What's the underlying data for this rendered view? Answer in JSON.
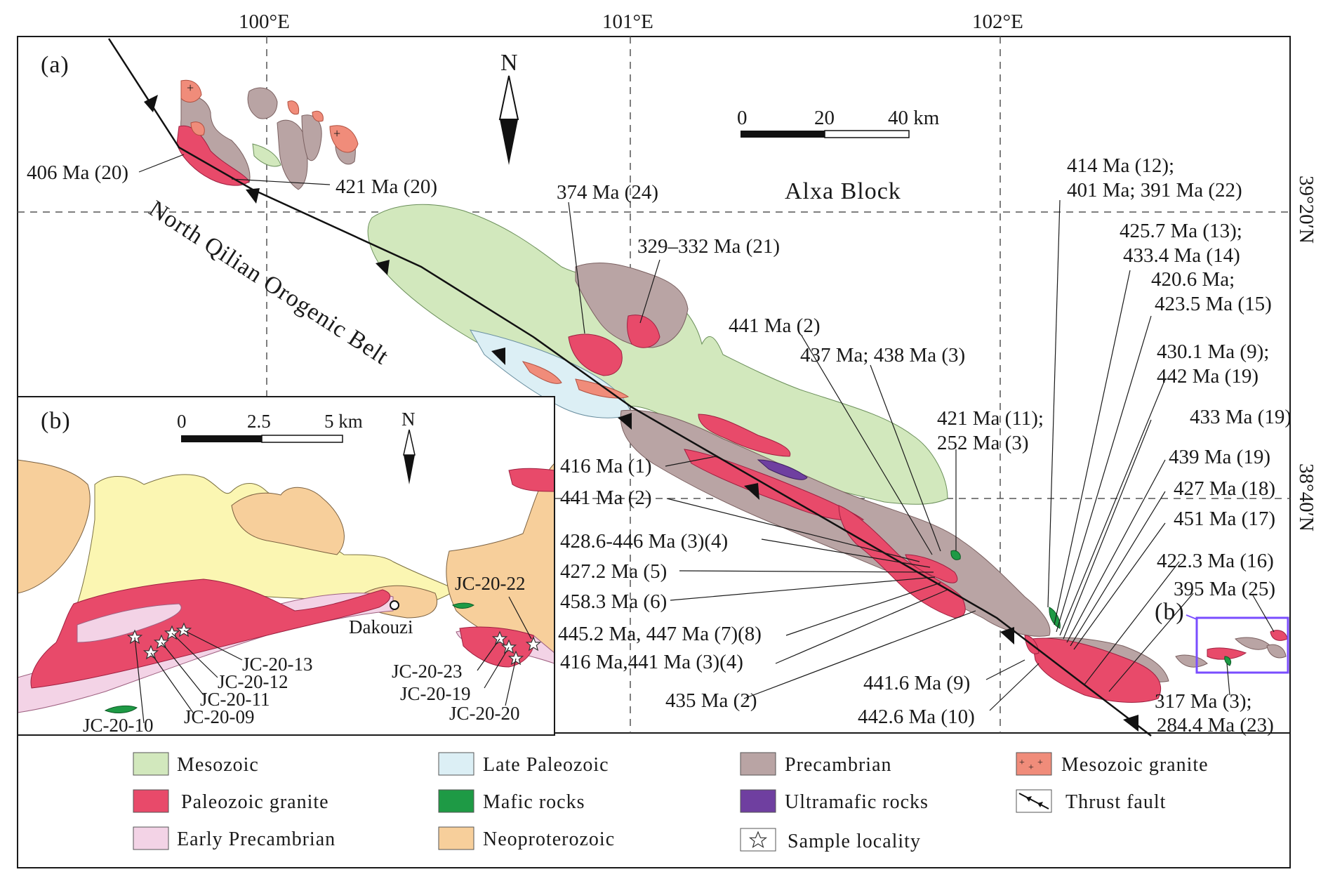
{
  "panel_a": {
    "label": "(a)",
    "longitudes": [
      "100°E",
      "101°E",
      "102°E"
    ],
    "latitudes": [
      "39°20′N",
      "38°40′N"
    ],
    "north": "N",
    "scale_ticks": [
      "0",
      "20",
      "40 km"
    ],
    "block_name": "Alxa Block",
    "belt_name": "North Qilian Orogenic Belt",
    "inset_marker": "(b)",
    "ages": [
      "406 Ma (20)",
      "421 Ma (20)",
      "374 Ma (24)",
      "329–332 Ma (21)",
      "441 Ma (2)",
      "437 Ma; 438 Ma (3)",
      "421 Ma (11);",
      "252 Ma (3)",
      "414 Ma (12);",
      "401 Ma; 391 Ma (22)",
      "425.7 Ma (13);",
      "433.4 Ma (14)",
      "420.6 Ma;",
      "423.5 Ma (15)",
      "430.1 Ma (9);",
      "442 Ma (19)",
      "433 Ma (19)",
      "439 Ma (19)",
      "427 Ma (18)",
      "451 Ma (17)",
      "422.3 Ma (16)",
      "395 Ma (25)",
      "317 Ma (3);",
      "284.4 Ma (23)",
      "416 Ma (1)",
      "441 Ma (2)",
      "428.6-446 Ma (3)(4)",
      "427.2 Ma (5)",
      "458.3 Ma (6)",
      "445.2 Ma, 447 Ma (7)(8)",
      "416 Ma,441 Ma (3)(4)",
      "435 Ma (2)",
      "441.6 Ma (9)",
      "442.6 Ma (10)"
    ]
  },
  "panel_b": {
    "label": "(b)",
    "north": "N",
    "scale_ticks": [
      "0",
      "2.5",
      "5 km"
    ],
    "town": "Dakouzi",
    "samples": [
      "JC-20-22",
      "JC-20-13",
      "JC-20-12",
      "JC-20-11",
      "JC-20-09",
      "JC-20-10",
      "JC-20-23",
      "JC-20-19",
      "JC-20-20"
    ]
  },
  "legend": [
    {
      "label": "Mesozoic",
      "color": "#d2e8bd"
    },
    {
      "label": "Late Paleozoic",
      "color": "#dceff5"
    },
    {
      "label": "Precambrian",
      "color": "#b9a4a4"
    },
    {
      "label": "Mesozoic granite",
      "color": "#f08c7a"
    },
    {
      "label": "Paleozoic granite",
      "color": "#e84a6a"
    },
    {
      "label": "Mafic rocks",
      "color": "#1e9a45"
    },
    {
      "label": "Ultramafic rocks",
      "color": "#6f3fa0"
    },
    {
      "label": "Thrust fault",
      "color": "#000000"
    },
    {
      "label": "Early Precambrian",
      "color": "#f3d3e6"
    },
    {
      "label": "Neoproterozoic",
      "color": "#f7cf9b"
    },
    {
      "label": "Sample locality",
      "color": "#ffffff"
    }
  ],
  "colors": {
    "neo_yellow": "#fbf6b2",
    "inset_frame": "#7a4dff"
  }
}
